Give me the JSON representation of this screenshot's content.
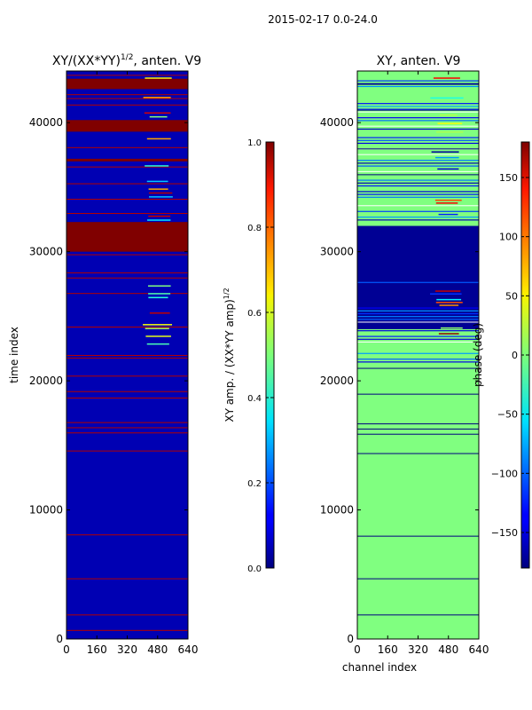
{
  "figure": {
    "suptitle": "2015-02-17 0.0-24.0"
  },
  "chart_data": [
    {
      "type": "heatmap",
      "title": "XY/(XX*YY)",
      "title_exponent": "1/2",
      "title_suffix": ", anten. V9",
      "xlabel": "",
      "ylabel": "time index",
      "xlim": [
        0,
        640
      ],
      "ylim": [
        0,
        44000
      ],
      "xticks": [
        "0",
        "160",
        "320",
        "480",
        "640"
      ],
      "yticks": [
        "0",
        "10000",
        "20000",
        "30000",
        "40000"
      ],
      "colorbar": {
        "label": "XY amp. / (XX*YY amp)",
        "label_exponent": "1/2",
        "range": [
          0.0,
          1.0
        ],
        "ticks": [
          "0.0",
          "0.2",
          "0.4",
          "0.6",
          "0.8",
          "1.0"
        ]
      },
      "background_value": 0.05,
      "saturated_time_bands": [
        [
          39300,
          40200
        ],
        [
          30000,
          32300
        ],
        [
          42600,
          43400
        ],
        [
          37000,
          37200
        ]
      ],
      "flagged_time_rows": [
        700,
        1900,
        4700,
        8100,
        14600,
        16000,
        16400,
        16800,
        18700,
        19200,
        20400,
        21800,
        22000,
        24200,
        26800,
        28000,
        28400,
        29800,
        33000,
        34100,
        35300,
        36600,
        38100,
        41400,
        41900,
        42200,
        43700
      ],
      "rfi_channel_range": [
        400,
        560
      ],
      "rfi_time_windows": [
        [
          22000,
          28000
        ],
        [
          32500,
          39000
        ],
        [
          40500,
          43700
        ]
      ]
    },
    {
      "type": "heatmap",
      "title": "XY, anten. V9",
      "xlabel": "channel index",
      "ylabel": "",
      "xlim": [
        0,
        640
      ],
      "ylim": [
        0,
        44000
      ],
      "xticks": [
        "0",
        "160",
        "320",
        "480",
        "640"
      ],
      "yticks": [
        "0",
        "10000",
        "20000",
        "30000",
        "40000"
      ],
      "colorbar": {
        "label": "phase (deg)",
        "range": [
          -180,
          180
        ],
        "ticks": [
          "−150",
          "−100",
          "−50",
          "0",
          "50",
          "100",
          "150"
        ]
      },
      "background_value": 0,
      "flagged_time_bands": [
        [
          24000,
          32000
        ],
        [
          28300,
          30000
        ]
      ],
      "flagged_time_rows": [
        1900,
        4700,
        8000,
        14400,
        15900,
        16300,
        16700,
        19000,
        21000,
        36000,
        38000,
        41000,
        43000
      ],
      "noisy_time_windows": [
        [
          21500,
          28000
        ],
        [
          32500,
          43700
        ]
      ]
    }
  ]
}
